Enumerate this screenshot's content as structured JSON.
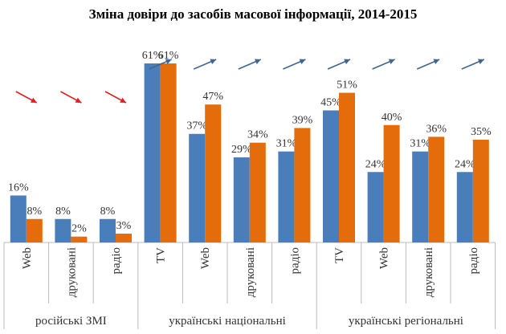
{
  "chart_data": {
    "type": "bar",
    "title": "Зміна довіри до засобів масової інформації, 2014-2015",
    "groups": [
      {
        "label": "російські ЗМІ",
        "categories": [
          "Web",
          "друковані",
          "радіо"
        ]
      },
      {
        "label": "українські національні",
        "categories": [
          "TV",
          "Web",
          "друковані",
          "радіо"
        ]
      },
      {
        "label": "українські регіональні",
        "categories": [
          "TV",
          "Web",
          "друковані",
          "радіо"
        ]
      }
    ],
    "categories": [
      "Web",
      "друковані",
      "радіо",
      "TV",
      "Web",
      "друковані",
      "радіо",
      "TV",
      "Web",
      "друковані",
      "радіо"
    ],
    "series": [
      {
        "values": [
          16,
          8,
          8,
          61,
          37,
          29,
          31,
          45,
          24,
          31,
          24
        ],
        "color": "#4a7ebb"
      },
      {
        "values": [
          8,
          2,
          3,
          61,
          47,
          34,
          39,
          51,
          40,
          36,
          35
        ],
        "color": "#e46c0a"
      }
    ],
    "value_format": "percent",
    "trend_arrows": [
      "down",
      "down",
      "down",
      "up",
      "up",
      "up",
      "up",
      "up",
      "up",
      "up",
      "up"
    ],
    "arrow_colors": {
      "down": "#e02020",
      "up": "#3f6693"
    },
    "ylim": [
      0,
      61
    ],
    "grid": false,
    "legend": "none"
  }
}
